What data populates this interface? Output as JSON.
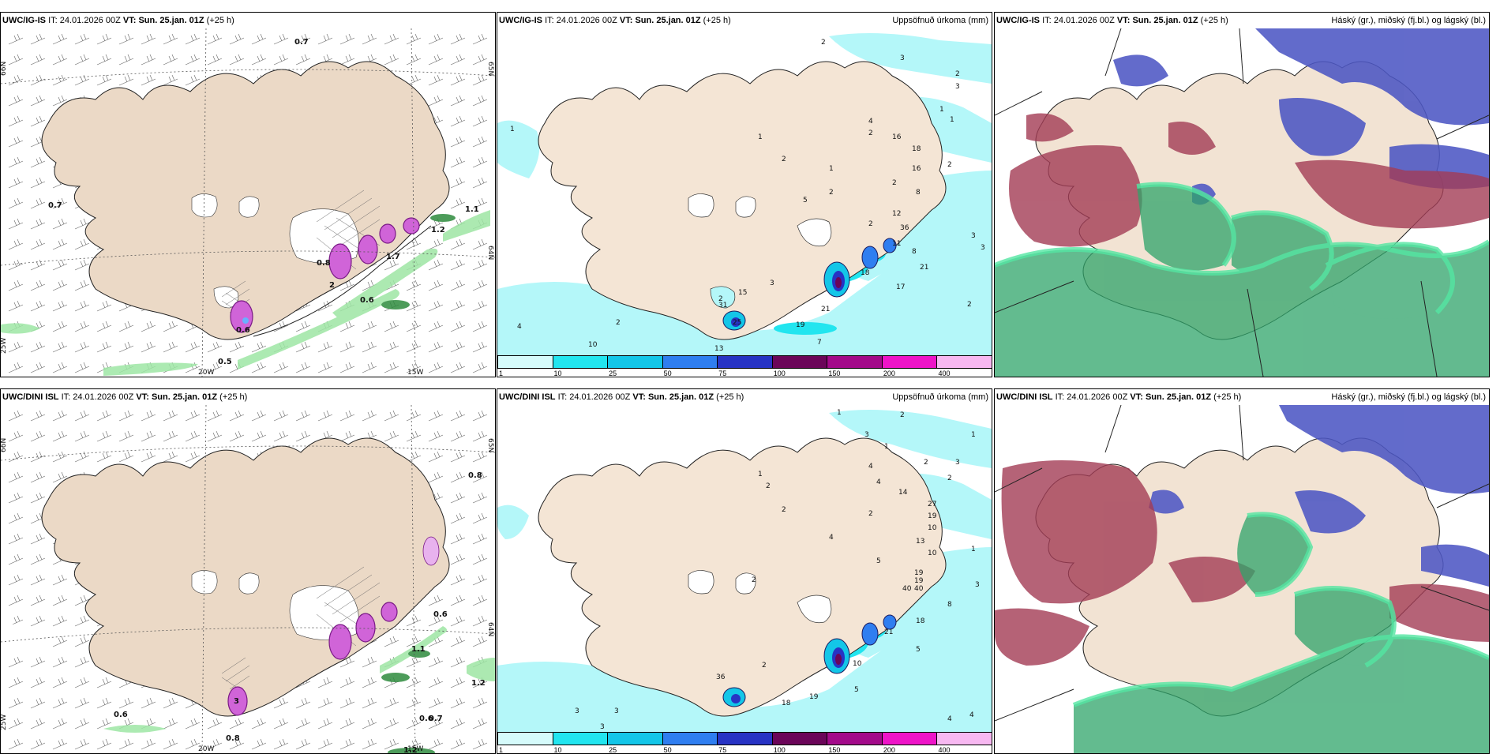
{
  "panels": [
    {
      "id": "p1",
      "title_model": "UWC/IG-IS",
      "it_label": "IT:",
      "it_value": "24.01.2026 00Z",
      "vt_label": "VT:",
      "vt_value": "Sun. 25.jan. 01Z",
      "lead": "(+25 h)",
      "right_title": "",
      "axis_labels": {
        "lon_left": "20W",
        "lon_right": "15W",
        "lat_top_left": "66N",
        "lat_top_right": "65N",
        "lat_mid_right": "64N",
        "lat_bottom_left": "25W"
      },
      "value_labels": [
        "0.7",
        "0.7",
        "1.1",
        "0.6",
        "0.6",
        "0.5",
        "0.8",
        "1.7",
        "1.2",
        "2"
      ]
    },
    {
      "id": "p2",
      "title_model": "UWC/IG-IS",
      "it_label": "IT:",
      "it_value": "24.01.2026 00Z",
      "vt_label": "VT:",
      "vt_value": "Sun. 25.jan. 01Z",
      "lead": "(+25 h)",
      "right_title": "Uppsöfnuð úrkoma (mm)",
      "value_labels": [
        "2",
        "3",
        "2",
        "3",
        "1",
        "1",
        "2",
        "4",
        "2",
        "1",
        "1",
        "16",
        "18",
        "16",
        "2",
        "1",
        "2",
        "5",
        "2",
        "8",
        "12",
        "2",
        "36",
        "11",
        "3",
        "8",
        "3",
        "18",
        "21",
        "17",
        "2",
        "4",
        "2",
        "15",
        "31",
        "25",
        "3",
        "19",
        "21",
        "13",
        "10",
        "7",
        "2"
      ]
    },
    {
      "id": "p3",
      "title_model": "UWC/IG-IS",
      "it_label": "IT:",
      "it_value": "24.01.2026 00Z",
      "vt_label": "VT:",
      "vt_value": "Sun. 25.jan. 01Z",
      "lead": "(+25 h)",
      "right_title": "Háský (gr.), miðský (fj.bl.) og lágský (bl.)"
    },
    {
      "id": "p4",
      "title_model": "UWC/DINI ISL",
      "it_label": "IT:",
      "it_value": "24.01.2026 00Z",
      "vt_label": "VT:",
      "vt_value": "Sun. 25.jan. 01Z",
      "lead": "(+25 h)",
      "right_title": "",
      "axis_labels": {
        "lon_left": "20W",
        "lon_right": "15W",
        "lat_top_left": "66N",
        "lat_top_right": "65N",
        "lat_mid_right": "64N",
        "lat_bottom_left": "25W"
      },
      "value_labels": [
        "0.8",
        "0.6",
        "1.2",
        "0.6",
        "0.8",
        "0.6",
        "0.7",
        "1.2",
        "1.1",
        "3"
      ]
    },
    {
      "id": "p5",
      "title_model": "UWC/DINI ISL",
      "it_label": "IT:",
      "it_value": "24.01.2026 00Z",
      "vt_label": "VT:",
      "vt_value": "Sun. 25.jan. 01Z",
      "lead": "(+25 h)",
      "right_title": "Uppsöfnuð úrkoma (mm)",
      "value_labels": [
        "1",
        "2",
        "1",
        "3",
        "1",
        "2",
        "4",
        "1",
        "2",
        "3",
        "4",
        "2",
        "14",
        "27",
        "19",
        "10",
        "2",
        "2",
        "13",
        "10",
        "4",
        "5",
        "2",
        "19",
        "40",
        "40",
        "1",
        "8",
        "3",
        "19",
        "21",
        "18",
        "5",
        "10",
        "2",
        "36",
        "18",
        "19",
        "5",
        "4",
        "4",
        "3",
        "3",
        "3"
      ]
    },
    {
      "id": "p6",
      "title_model": "UWC/DINI ISL",
      "it_label": "IT:",
      "it_value": "24.01.2026 00Z",
      "vt_label": "VT:",
      "vt_value": "Sun. 25.jan. 01Z",
      "lead": "(+25 h)",
      "right_title": "Háský (gr.), miðský (fj.bl.) og lágský (bl.)"
    }
  ],
  "colorbar": {
    "ticks": [
      "1",
      "10",
      "25",
      "50",
      "75",
      "100",
      "150",
      "200",
      "400"
    ],
    "colors": [
      "#d6fbfb",
      "#22e5ef",
      "#13c6e8",
      "#2f7ef0",
      "#2733c4",
      "#6b0559",
      "#a30a8a",
      "#ee14c8",
      "#f7b8f1"
    ]
  },
  "colors": {
    "land": "#f2e3d3",
    "sea_precip_light": "#b4f7f9",
    "high_cloud": "#4fd89a",
    "mid_cloud": "#a33c55",
    "low_cloud": "#4d57c4"
  }
}
